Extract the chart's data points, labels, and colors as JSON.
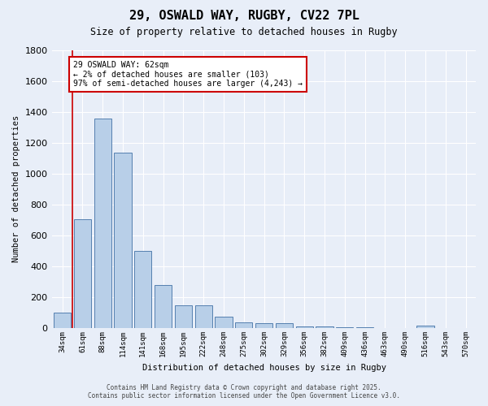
{
  "title": "29, OSWALD WAY, RUGBY, CV22 7PL",
  "subtitle": "Size of property relative to detached houses in Rugby",
  "xlabel": "Distribution of detached houses by size in Rugby",
  "ylabel": "Number of detached properties",
  "bar_labels": [
    "34sqm",
    "61sqm",
    "88sqm",
    "114sqm",
    "141sqm",
    "168sqm",
    "195sqm",
    "222sqm",
    "248sqm",
    "275sqm",
    "302sqm",
    "329sqm",
    "356sqm",
    "382sqm",
    "409sqm",
    "436sqm",
    "463sqm",
    "490sqm",
    "516sqm",
    "543sqm",
    "570sqm"
  ],
  "bar_values": [
    103,
    706,
    1356,
    1133,
    500,
    280,
    148,
    148,
    75,
    35,
    30,
    30,
    10,
    10,
    5,
    5,
    0,
    0,
    18,
    0,
    0
  ],
  "bar_color": "#b8cfe8",
  "bar_edge_color": "#5580b0",
  "ylim": [
    0,
    1800
  ],
  "yticks": [
    0,
    200,
    400,
    600,
    800,
    1000,
    1200,
    1400,
    1600,
    1800
  ],
  "vline_color": "#cc0000",
  "annotation_text": "29 OSWALD WAY: 62sqm\n← 2% of detached houses are smaller (103)\n97% of semi-detached houses are larger (4,243) →",
  "annotation_box_color": "#ffffff",
  "annotation_box_edge_color": "#cc0000",
  "background_color": "#e8eef8",
  "footer_line1": "Contains HM Land Registry data © Crown copyright and database right 2025.",
  "footer_line2": "Contains public sector information licensed under the Open Government Licence v3.0."
}
